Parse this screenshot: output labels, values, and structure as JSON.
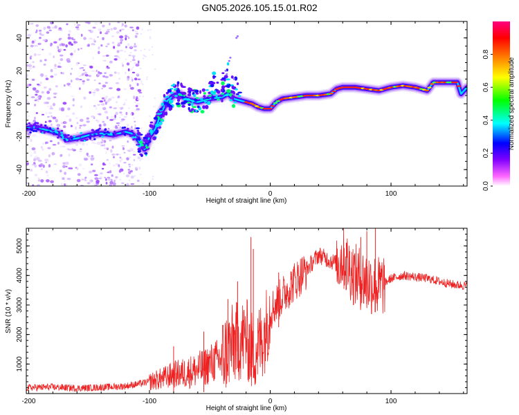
{
  "title": "GN05.2026.105.15.01.R02",
  "chart_data": [
    {
      "type": "heatmap",
      "xlabel": "Height of straight line (km)",
      "ylabel": "Frequency (Hz)",
      "xlim": [
        -202,
        163
      ],
      "ylim": [
        -50,
        50
      ],
      "xticks": [
        -200,
        -100,
        0,
        100
      ],
      "yticks": [
        -40,
        -20,
        0,
        20,
        40
      ],
      "colorbar": {
        "label": "Normalized spectral amplitude",
        "range": [
          0,
          1
        ],
        "ticks": [
          "0.0",
          "0.2",
          "0.4",
          "0.6",
          "0.8"
        ],
        "colors": [
          "#ffffff",
          "#8000ff",
          "#0000ff",
          "#00ffff",
          "#00ff00",
          "#ffff00",
          "#ff8000",
          "#ff0000",
          "#ff0080"
        ]
      },
      "ridge": {
        "x": [
          -202,
          -195,
          -185,
          -175,
          -168,
          -160,
          -150,
          -140,
          -130,
          -120,
          -115,
          -110,
          -106,
          -104,
          -100,
          -95,
          -90,
          -85,
          -80,
          -75,
          -70,
          -60,
          -50,
          -40,
          -35,
          -30,
          -25,
          -20,
          -15,
          -10,
          -5,
          0,
          5,
          10,
          20,
          30,
          40,
          50,
          55,
          60,
          70,
          80,
          90,
          100,
          110,
          120,
          130,
          135,
          145,
          155,
          158,
          163
        ],
        "y": [
          -15,
          -14,
          -16,
          -18,
          -22,
          -21,
          -19,
          -18,
          -19,
          -17,
          -18,
          -21,
          -25,
          -28,
          -20,
          -15,
          -5,
          2,
          5,
          6,
          3,
          1,
          3,
          4,
          6,
          3,
          2,
          1,
          0,
          -2,
          -3,
          -3,
          1,
          3,
          4,
          5,
          5,
          6,
          9,
          10,
          10,
          9,
          8,
          10,
          11,
          10,
          8,
          13,
          13,
          13,
          6,
          10
        ]
      }
    },
    {
      "type": "line",
      "color": "#ee2222",
      "xlabel": "Height of straight line (km)",
      "ylabel": "SNR (10 * v/v)",
      "xlim": [
        -202,
        163
      ],
      "ylim": [
        0,
        5600
      ],
      "xticks": [
        -200,
        -100,
        0,
        100
      ],
      "yticks": [
        1000,
        2000,
        3000,
        4000,
        5000
      ],
      "envelope": {
        "x": [
          -202,
          -180,
          -160,
          -140,
          -120,
          -110,
          -100,
          -90,
          -80,
          -70,
          -60,
          -50,
          -40,
          -35,
          -30,
          -25,
          -20,
          -15,
          -10,
          -5,
          0,
          10,
          20,
          30,
          40,
          45,
          50,
          55,
          60,
          65,
          70,
          80,
          90,
          100,
          110,
          120,
          130,
          140,
          150,
          163
        ],
        "y": [
          200,
          220,
          180,
          210,
          250,
          320,
          400,
          500,
          650,
          700,
          800,
          1000,
          1200,
          1500,
          1700,
          1800,
          1900,
          1400,
          1600,
          2000,
          2800,
          3300,
          3800,
          4200,
          4700,
          4600,
          4500,
          4400,
          4600,
          4300,
          4000,
          3800,
          3600,
          3900,
          4000,
          3950,
          3900,
          3800,
          3700,
          3650
        ]
      },
      "spikes": [
        {
          "x": -80,
          "y": 1600
        },
        {
          "x": -55,
          "y": 2100
        },
        {
          "x": -35,
          "y": 3200
        },
        {
          "x": -27,
          "y": 3800
        },
        {
          "x": -16,
          "y": 5300
        },
        {
          "x": -14,
          "y": 4900
        },
        {
          "x": 7,
          "y": 4100
        },
        {
          "x": 63,
          "y": 5100
        },
        {
          "x": 75,
          "y": 5300
        },
        {
          "x": 80,
          "y": 5500
        },
        {
          "x": 87,
          "y": 5600
        }
      ]
    }
  ]
}
